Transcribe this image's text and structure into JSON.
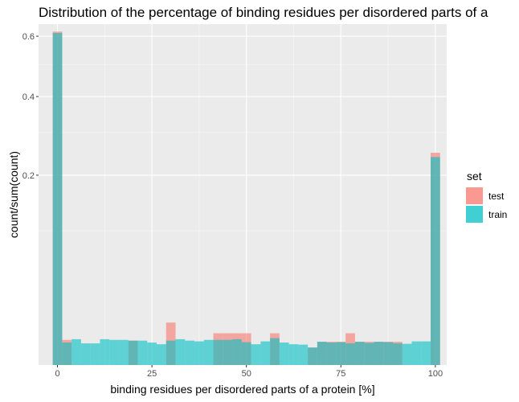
{
  "chart_data": {
    "type": "bar",
    "title": "Distribution of the percentage of binding residues per disordered parts of a",
    "xlabel": "binding residues per disordered parts of a protein [%]",
    "ylabel": "count/sum(count)",
    "x_ticks": [
      "0",
      "25",
      "50",
      "75",
      "100"
    ],
    "y_ticks": [
      "0.2",
      "0.4",
      "0.6"
    ],
    "y_scale": "sqrt",
    "xlim": [
      -5,
      103
    ],
    "ylim": [
      0,
      0.645
    ],
    "bin_width": 2.5,
    "x": [
      0,
      2.5,
      5,
      7.5,
      10,
      12.5,
      15,
      17.5,
      20,
      22.5,
      25,
      27.5,
      30,
      32.5,
      35,
      37.5,
      40,
      42.5,
      45,
      47.5,
      50,
      52.5,
      55,
      57.5,
      60,
      62.5,
      65,
      67.5,
      70,
      72.5,
      75,
      77.5,
      80,
      82.5,
      85,
      87.5,
      90,
      92.5,
      95,
      97.5,
      100
    ],
    "series": [
      {
        "name": "test",
        "color": "#F8766D",
        "values": [
          0.617,
          0.0035,
          0,
          0,
          0,
          0,
          0,
          0,
          0.0033,
          0,
          0,
          0,
          0.01,
          0,
          0,
          0,
          0,
          0.0056,
          0.0056,
          0.0056,
          0.0056,
          0,
          0,
          0.0056,
          0,
          0,
          0,
          0.0017,
          0.003,
          0.003,
          0.003,
          0.0056,
          0.003,
          0.003,
          0.003,
          0.003,
          0.003,
          0,
          0,
          0,
          0.25
        ]
      },
      {
        "name": "train",
        "color": "#00BFC4",
        "values": [
          0.612,
          0.0028,
          0.0037,
          0.0026,
          0.0026,
          0.0037,
          0.0035,
          0.0035,
          0.0033,
          0.0033,
          0.0028,
          0.0024,
          0.0033,
          0.0037,
          0.0033,
          0.0031,
          0.0035,
          0.0035,
          0.0035,
          0.0037,
          0.0029,
          0.0024,
          0.0031,
          0.004,
          0.0028,
          0.0024,
          0.0023,
          0.0017,
          0.003,
          0.0028,
          0.0029,
          0.0026,
          0.003,
          0.0027,
          0.003,
          0.0029,
          0.0026,
          0.0025,
          0.0031,
          0.0031,
          0.24
        ]
      }
    ],
    "legend": {
      "title": "set",
      "position": "right",
      "items": [
        "test",
        "train"
      ]
    },
    "grid": true
  }
}
